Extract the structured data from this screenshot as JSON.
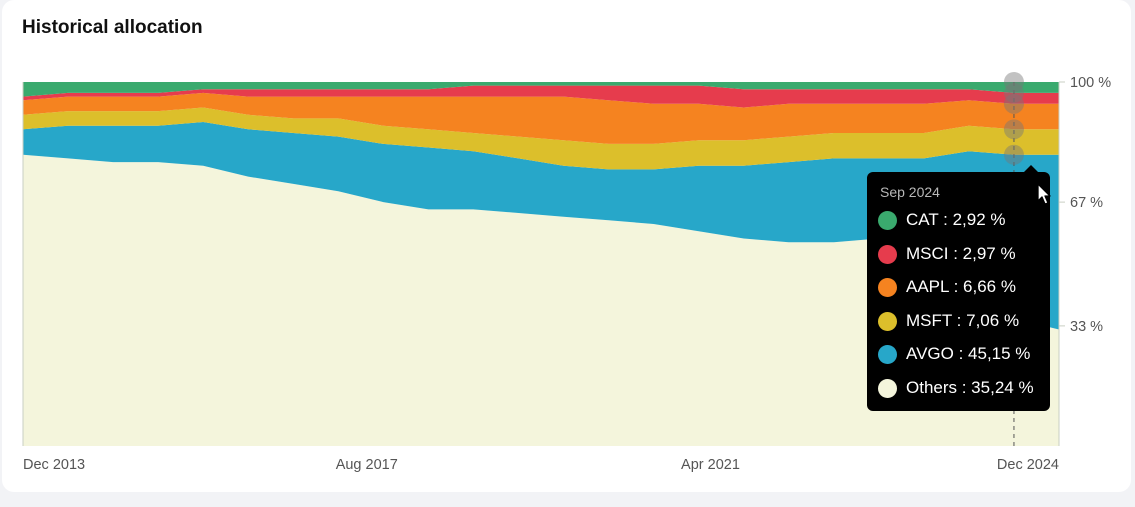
{
  "title": "Historical allocation",
  "chart_data": {
    "type": "area",
    "stacked": "percent",
    "x_ticks": [
      "Dec 2013",
      "Aug 2017",
      "Apr 2021",
      "Dec 2024"
    ],
    "y_ticks": [
      "100 %",
      "67 %",
      "33 %"
    ],
    "ylim": [
      0,
      100
    ],
    "x": [
      "Dec 2013",
      "Jun 2014",
      "Dec 2014",
      "Jun 2015",
      "Dec 2015",
      "Jun 2016",
      "Dec 2016",
      "Jun 2017",
      "Dec 2017",
      "Jun 2018",
      "Dec 2018",
      "Jun 2019",
      "Dec 2019",
      "Jun 2020",
      "Dec 2020",
      "Jun 2021",
      "Dec 2021",
      "Jun 2022",
      "Dec 2022",
      "Jun 2023",
      "Dec 2023",
      "Jun 2024",
      "Sep 2024",
      "Dec 2024"
    ],
    "series": [
      {
        "name": "CAT",
        "color": "#3aaa6e",
        "values": [
          4,
          3,
          3,
          3,
          2,
          2,
          2,
          2,
          2,
          2,
          1,
          1,
          1,
          1,
          1,
          1,
          2,
          2,
          2,
          2,
          2,
          2,
          3,
          3
        ]
      },
      {
        "name": "MSCI",
        "color": "#e63c4d",
        "values": [
          1,
          1,
          1,
          1,
          1,
          2,
          2,
          2,
          2,
          2,
          3,
          3,
          3,
          4,
          5,
          5,
          5,
          4,
          4,
          4,
          4,
          3,
          3,
          3
        ]
      },
      {
        "name": "AAPL",
        "color": "#f58320",
        "values": [
          4,
          4,
          4,
          4,
          4,
          5,
          6,
          6,
          8,
          9,
          10,
          11,
          12,
          12,
          11,
          10,
          9,
          9,
          8,
          8,
          8,
          7,
          7,
          7
        ]
      },
      {
        "name": "MSFT",
        "color": "#dcbf2b",
        "values": [
          4,
          4,
          4,
          4,
          4,
          4,
          4,
          5,
          5,
          5,
          5,
          6,
          7,
          7,
          7,
          7,
          7,
          7,
          7,
          7,
          7,
          7,
          7,
          7
        ]
      },
      {
        "name": "AVGO",
        "color": "#27a7c9",
        "values": [
          7,
          9,
          10,
          10,
          12,
          13,
          14,
          15,
          16,
          17,
          16,
          15,
          14,
          14,
          15,
          18,
          20,
          22,
          23,
          22,
          23,
          34,
          45,
          48
        ]
      },
      {
        "name": "Others",
        "color": "#f4f5dc",
        "values": [
          80,
          79,
          78,
          78,
          77,
          74,
          72,
          70,
          67,
          65,
          65,
          64,
          63,
          62,
          61,
          59,
          57,
          56,
          56,
          57,
          56,
          47,
          35,
          32
        ]
      }
    ],
    "tooltip": {
      "date": "Sep 2024",
      "items": [
        {
          "text": "CAT : 2,92 %",
          "color": "#3aaa6e"
        },
        {
          "text": "MSCI : 2,97 %",
          "color": "#e63c4d"
        },
        {
          "text": "AAPL : 6,66 %",
          "color": "#f58320"
        },
        {
          "text": "MSFT : 7,06 %",
          "color": "#dcbf2b"
        },
        {
          "text": "AVGO : 45,15 %",
          "color": "#27a7c9"
        },
        {
          "text": "Others : 35,24 %",
          "color": "#f4f5dc"
        }
      ]
    }
  }
}
